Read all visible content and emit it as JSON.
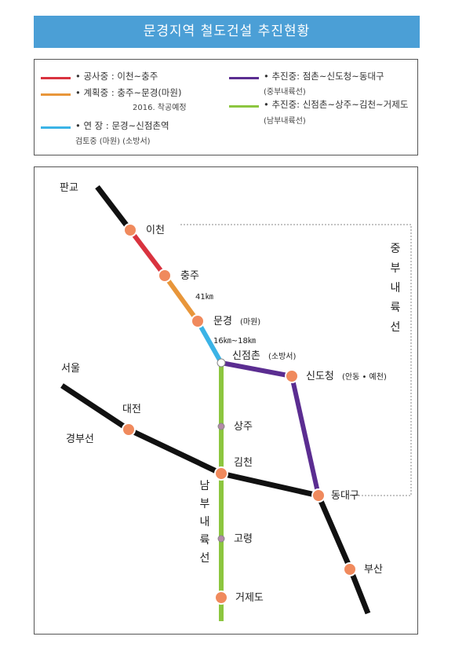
{
  "title": "문경지역 철도건설 추진현황",
  "legend": [
    {
      "color": "#d9333f",
      "text": "• 공사중 : 이천~충주",
      "sub": ""
    },
    {
      "color": "#e8963a",
      "text": "• 계획중 : 충주~문경(마원)",
      "sub": "2016. 착공예정"
    },
    {
      "color": "#3bb3e6",
      "text": "• 연   장 : 문경~신점촌역",
      "sub": "검토중  (마원)  (소방서)"
    },
    {
      "color": "#5b2d91",
      "text": "• 추진중: 점촌~신도청~동대구",
      "sub": "(중부내륙선)"
    },
    {
      "color": "#8cc63f",
      "text": "• 추진중: 신점촌~상주~김천~거제도",
      "sub": "(남부내륙선)"
    }
  ],
  "colors": {
    "black_line": "#111111",
    "construction": "#d9333f",
    "planned": "#e8963a",
    "extension": "#3bb3e6",
    "central": "#5b2d91",
    "southern": "#8cc63f",
    "station_fill": "#f08a5d",
    "small_station": "#b48aa8"
  },
  "map": {
    "pangyo": "판교",
    "icheon": "이천",
    "chungju": "충주",
    "dist1": "41㎞",
    "mungyeong": "문경",
    "mungyeong_sub": "(마원)",
    "dist2": "16㎞~18㎞",
    "sinjeomchon": "신점촌",
    "sinjeomchon_sub": "(소방서)",
    "sindocheong": "신도청",
    "sindocheong_sub": "(안동 • 예천)",
    "seoul": "서울",
    "daejeon": "대전",
    "gyeongbu": "경부선",
    "sangju": "상주",
    "gimcheon": "김천",
    "dongdaegu": "동대구",
    "goryeong": "고령",
    "busan": "부산",
    "geojedo": "거제도",
    "central_line_vertical": [
      "중",
      "부",
      "내",
      "륙",
      "선"
    ],
    "southern_line_vertical": [
      "남",
      "부",
      "내",
      "륙",
      "선"
    ]
  }
}
